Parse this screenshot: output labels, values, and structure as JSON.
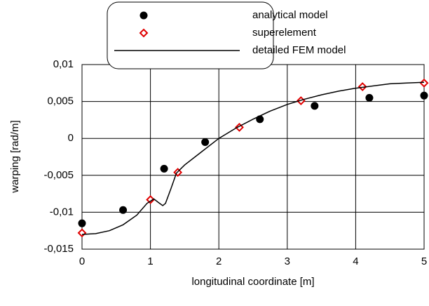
{
  "chart_data": {
    "type": "scatter-line",
    "xlabel": "longitudinal coordinate [m]",
    "ylabel": "warping [rad/m]",
    "xlim": [
      0,
      5
    ],
    "xticks": [
      0,
      1,
      2,
      3,
      4,
      5
    ],
    "ylim": [
      -0.015,
      0.01
    ],
    "yticks": [
      {
        "value": -0.015,
        "label": "-0,015"
      },
      {
        "value": -0.01,
        "label": "-0,01"
      },
      {
        "value": -0.005,
        "label": "-0,005"
      },
      0,
      {
        "value": 0.005,
        "label": "0,005"
      },
      {
        "value": 0.01,
        "label": "0,01"
      }
    ],
    "grid": true,
    "legend": "upper center",
    "series": [
      {
        "name": "analytical model",
        "color": "#000000",
        "marker": "circle",
        "x": [
          0,
          0.6,
          1.2,
          1.8,
          2.6,
          3.4,
          4.2,
          5.0
        ],
        "values": [
          -0.0115,
          -0.0097,
          -0.0041,
          -0.0005,
          0.0026,
          0.0044,
          0.0055,
          0.0058
        ]
      },
      {
        "name": "superelement",
        "color": "#e00000",
        "marker": "diamond",
        "x": [
          0,
          1.0,
          1.4,
          2.3,
          3.2,
          4.1,
          5.0
        ],
        "values": [
          -0.0128,
          -0.0083,
          -0.0046,
          0.0015,
          0.0051,
          0.007,
          0.0075
        ]
      },
      {
        "name": "detailed FEM model",
        "color": "#000000",
        "marker": "line",
        "x": [
          0,
          0.2,
          0.4,
          0.6,
          0.8,
          0.95,
          1.05,
          1.12,
          1.18,
          1.22,
          1.3,
          1.38,
          1.5,
          1.75,
          2.0,
          2.25,
          2.5,
          2.75,
          3.0,
          3.25,
          3.5,
          3.75,
          4.0,
          4.25,
          4.5,
          4.75,
          5.0
        ],
        "values": [
          -0.013,
          -0.0129,
          -0.0125,
          -0.0117,
          -0.0104,
          -0.0088,
          -0.0082,
          -0.0087,
          -0.0091,
          -0.0088,
          -0.0068,
          -0.0047,
          -0.0036,
          -0.0018,
          0.0,
          0.0014,
          0.0026,
          0.0037,
          0.0046,
          0.0053,
          0.0059,
          0.0064,
          0.0068,
          0.0071,
          0.0074,
          0.0075,
          0.0076
        ]
      }
    ]
  }
}
